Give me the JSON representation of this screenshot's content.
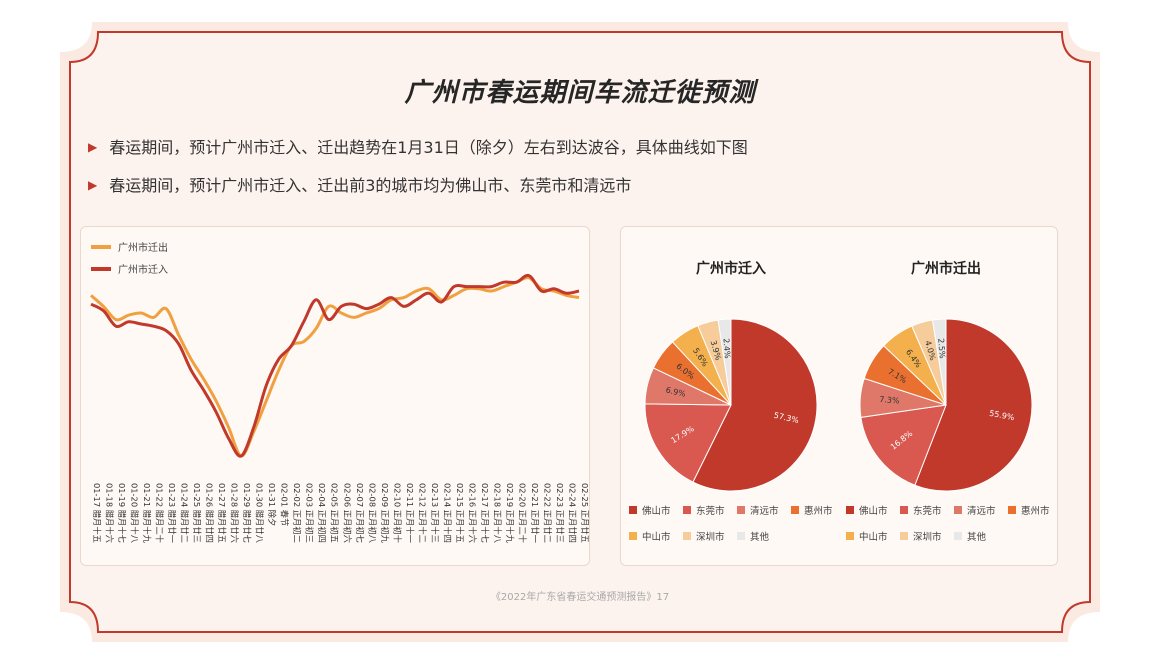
{
  "title": "广州市春运期间车流迁徙预测",
  "bullets": [
    "春运期间，预计广州市迁入、迁出趋势在1月31日（除夕）左右到达波谷，具体曲线如下图",
    "春运期间，预计广州市迁入、迁出前3的城市均为佛山市、东莞市和清远市"
  ],
  "footer": "《2022年广东省春运交通预测报告》17",
  "colors": {
    "primary_red": "#c0392b",
    "orange": "#f0a040"
  },
  "chart_data": [
    {
      "type": "line",
      "categories": [
        "01-17 腊月十五",
        "01-18 腊月十六",
        "01-19 腊月十七",
        "01-20 腊月十八",
        "01-21 腊月十九",
        "01-22 腊月二十",
        "01-23 腊月廿一",
        "01-24 腊月廿二",
        "01-25 腊月廿三",
        "01-26 腊月廿四",
        "01-27 腊月廿五",
        "01-28 腊月廿六",
        "01-29 腊月廿七",
        "01-30 腊月廿八",
        "01-31 除夕",
        "02-01 春节",
        "02-02 正月初二",
        "02-03 正月初三",
        "02-04 正月初四",
        "02-05 正月初五",
        "02-06 正月初六",
        "02-07 正月初七",
        "02-08 正月初八",
        "02-09 正月初九",
        "02-10 正月初十",
        "02-11 正月十一",
        "02-12 正月十二",
        "02-13 正月十三",
        "02-14 正月十四",
        "02-15 正月十五",
        "02-16 正月十六",
        "02-17 正月十七",
        "02-18 正月十八",
        "02-19 正月十九",
        "02-20 正月二十",
        "02-21 正月廿一",
        "02-22 正月廿二",
        "02-23 正月廿三",
        "02-24 正月廿四",
        "02-25 正月廿五"
      ],
      "series": [
        {
          "name": "广州市迁出",
          "color": "#f0a040",
          "values": [
            78,
            73,
            67,
            69,
            70,
            68,
            72,
            60,
            49,
            40,
            30,
            18,
            5,
            16,
            30,
            44,
            55,
            57,
            63,
            73,
            70,
            68,
            70,
            72,
            76,
            77,
            80,
            81,
            76,
            78,
            81,
            81,
            80,
            82,
            84,
            86,
            81,
            80,
            78,
            77
          ]
        },
        {
          "name": "广州市迁入",
          "color": "#c0392b",
          "values": [
            74,
            71,
            64,
            66,
            65,
            64,
            62,
            56,
            44,
            35,
            25,
            13,
            5,
            18,
            37,
            49,
            55,
            66,
            76,
            67,
            73,
            74,
            72,
            74,
            77,
            73,
            76,
            79,
            75,
            82,
            82,
            82,
            82,
            84,
            84,
            87,
            80,
            81,
            79,
            80
          ]
        }
      ],
      "ylim": [
        0,
        100
      ],
      "legend": "top-left"
    },
    {
      "type": "pie",
      "title": "广州市迁入",
      "slices": [
        {
          "label": "佛山市",
          "value": 57.3,
          "display": "57.3%",
          "color": "#c0392b"
        },
        {
          "label": "东莞市",
          "value": 17.9,
          "display": "17.9%",
          "color": "#d9584f"
        },
        {
          "label": "清远市",
          "value": 6.9,
          "display": "6.9%",
          "color": "#e0786a"
        },
        {
          "label": "惠州市",
          "value": 6.0,
          "display": "6.0%",
          "color": "#ea7030"
        },
        {
          "label": "中山市",
          "value": 5.6,
          "display": "5.6%",
          "color": "#f3b04c"
        },
        {
          "label": "深圳市",
          "value": 3.9,
          "display": "3.9%",
          "color": "#f5cc9a"
        },
        {
          "label": "其他",
          "value": 2.4,
          "display": "2.4%",
          "color": "#e8e8e8"
        }
      ]
    },
    {
      "type": "pie",
      "title": "广州市迁出",
      "slices": [
        {
          "label": "佛山市",
          "value": 55.9,
          "display": "55.9%",
          "color": "#c0392b"
        },
        {
          "label": "东莞市",
          "value": 16.8,
          "display": "16.8%",
          "color": "#d9584f"
        },
        {
          "label": "清远市",
          "value": 7.3,
          "display": "7.3%",
          "color": "#e0786a"
        },
        {
          "label": "惠州市",
          "value": 7.1,
          "display": "7.1%",
          "color": "#ea7030"
        },
        {
          "label": "中山市",
          "value": 6.4,
          "display": "6.4%",
          "color": "#f3b04c"
        },
        {
          "label": "深圳市",
          "value": 4.0,
          "display": "4.0%",
          "color": "#f5cc9a"
        },
        {
          "label": "其他",
          "value": 2.5,
          "display": "2.5%",
          "color": "#e8e8e8"
        }
      ]
    }
  ]
}
